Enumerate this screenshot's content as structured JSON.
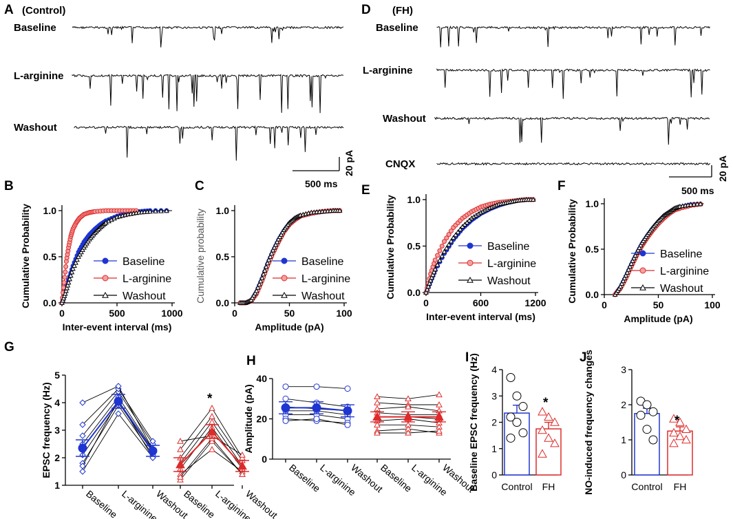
{
  "colors": {
    "blue": "#1f35d1",
    "red": "#dd2a2a",
    "black": "#000000"
  },
  "chart_data": [
    {
      "panel": "A",
      "type": "line",
      "title": "(Control)",
      "series": [
        {
          "name": "Baseline"
        },
        {
          "name": "L-arginine"
        },
        {
          "name": "Washout"
        }
      ],
      "scale_bar": {
        "time": "500 ms",
        "current": "20 pA"
      }
    },
    {
      "panel": "D",
      "type": "line",
      "title": "(FH)",
      "series": [
        {
          "name": "Baseline"
        },
        {
          "name": "L-arginine"
        },
        {
          "name": "Washout"
        },
        {
          "name": "CNQX"
        }
      ],
      "scale_bar": {
        "time": "500 ms",
        "current": "20 pA"
      }
    },
    {
      "panel": "B",
      "type": "scatter",
      "xlabel": "Inter-event interval (ms)",
      "ylabel": "Cumulative Probability",
      "xlim": [
        0,
        1000
      ],
      "ylim": [
        0,
        1
      ],
      "xticks": [
        "0",
        "500",
        "1000"
      ],
      "yticks": [
        "0.0",
        "0.5",
        "1.0"
      ],
      "legend": [
        "Baseline",
        "L-arginine",
        "Washout"
      ],
      "series": [
        {
          "name": "Baseline",
          "x": [
            0,
            30,
            60,
            100,
            150,
            200,
            250,
            300,
            350,
            400,
            500,
            600,
            700,
            800,
            1000
          ],
          "y": [
            0,
            0.12,
            0.25,
            0.4,
            0.55,
            0.66,
            0.74,
            0.8,
            0.85,
            0.89,
            0.94,
            0.97,
            0.99,
            1.0,
            1.0
          ]
        },
        {
          "name": "L-arginine",
          "x": [
            0,
            20,
            40,
            60,
            80,
            100,
            130,
            160,
            200,
            250,
            300,
            400,
            500,
            600,
            700
          ],
          "y": [
            0,
            0.22,
            0.45,
            0.6,
            0.72,
            0.8,
            0.87,
            0.92,
            0.96,
            0.98,
            0.99,
            1.0,
            1.0,
            1.0,
            1.0
          ]
        },
        {
          "name": "Washout",
          "x": [
            0,
            30,
            60,
            100,
            150,
            200,
            250,
            300,
            350,
            400,
            500,
            600,
            700,
            800,
            1000
          ],
          "y": [
            0,
            0.1,
            0.22,
            0.37,
            0.5,
            0.6,
            0.69,
            0.76,
            0.82,
            0.87,
            0.93,
            0.96,
            0.98,
            0.99,
            1.0
          ]
        }
      ]
    },
    {
      "panel": "C",
      "type": "scatter",
      "xlabel": "Amplitude (pA)",
      "ylabel": "Cumulative probability",
      "xlim": [
        0,
        100
      ],
      "ylim": [
        0,
        1
      ],
      "xticks": [
        "0",
        "50",
        "100"
      ],
      "yticks": [
        "0.0",
        "0.5",
        "1.0"
      ],
      "legend": [
        "Baseline",
        "L-arginine",
        "Washout"
      ],
      "series": [
        {
          "name": "Baseline",
          "x": [
            5,
            10,
            15,
            20,
            25,
            30,
            35,
            40,
            45,
            50,
            55,
            60,
            70,
            80,
            90,
            98
          ],
          "y": [
            0,
            0,
            0.02,
            0.12,
            0.26,
            0.42,
            0.56,
            0.68,
            0.78,
            0.86,
            0.91,
            0.94,
            0.97,
            0.99,
            1.0,
            1.0
          ]
        },
        {
          "name": "L-arginine",
          "x": [
            5,
            10,
            15,
            20,
            25,
            30,
            35,
            40,
            45,
            50,
            55,
            60,
            70,
            80,
            90,
            98
          ],
          "y": [
            0,
            0,
            0.02,
            0.1,
            0.24,
            0.4,
            0.54,
            0.66,
            0.77,
            0.85,
            0.9,
            0.94,
            0.97,
            0.99,
            1.0,
            1.0
          ]
        },
        {
          "name": "Washout",
          "x": [
            5,
            10,
            15,
            20,
            25,
            30,
            35,
            40,
            45,
            50,
            55,
            60,
            70,
            80,
            90,
            98
          ],
          "y": [
            0,
            0,
            0.03,
            0.13,
            0.27,
            0.43,
            0.57,
            0.69,
            0.79,
            0.87,
            0.92,
            0.95,
            0.98,
            0.99,
            1.0,
            1.0
          ]
        }
      ]
    },
    {
      "panel": "E",
      "type": "scatter",
      "xlabel": "Inter-event interval (ms)",
      "ylabel": "Cumulative Probability",
      "xlim": [
        0,
        1200
      ],
      "ylim": [
        0,
        1
      ],
      "xticks": [
        "0",
        "600",
        "1200"
      ],
      "yticks": [
        "0.0",
        "0.5",
        "1.0"
      ],
      "legend": [
        "Baseline",
        "L-arginine",
        "Washout"
      ],
      "series": [
        {
          "name": "Baseline",
          "x": [
            0,
            50,
            100,
            200,
            300,
            400,
            500,
            600,
            700,
            800,
            900,
            1000,
            1100,
            1200
          ],
          "y": [
            0,
            0.12,
            0.24,
            0.42,
            0.57,
            0.69,
            0.78,
            0.85,
            0.9,
            0.94,
            0.97,
            0.99,
            1.0,
            1.0
          ]
        },
        {
          "name": "L-arginine",
          "x": [
            0,
            50,
            100,
            200,
            300,
            400,
            500,
            600,
            700,
            800,
            900,
            1000,
            1100,
            1200
          ],
          "y": [
            0,
            0.2,
            0.35,
            0.55,
            0.7,
            0.8,
            0.87,
            0.92,
            0.95,
            0.97,
            0.98,
            0.99,
            1.0,
            1.0
          ]
        },
        {
          "name": "Washout",
          "x": [
            0,
            50,
            100,
            200,
            300,
            400,
            500,
            600,
            700,
            800,
            900,
            1000,
            1100,
            1200
          ],
          "y": [
            0,
            0.13,
            0.25,
            0.44,
            0.59,
            0.71,
            0.8,
            0.86,
            0.91,
            0.95,
            0.97,
            0.99,
            1.0,
            1.0
          ]
        }
      ]
    },
    {
      "panel": "F",
      "type": "scatter",
      "xlabel": "Amplitude (pA)",
      "ylabel": "Cumulative Probability",
      "xlim": [
        0,
        100
      ],
      "ylim": [
        0,
        1
      ],
      "xticks": [
        "0",
        "50",
        "100"
      ],
      "yticks": [
        "0.0",
        "0.5",
        "1.0"
      ],
      "legend": [
        "Baseline",
        "L-arginine",
        "Washout"
      ],
      "series": [
        {
          "name": "Baseline",
          "x": [
            10,
            15,
            20,
            25,
            30,
            35,
            40,
            45,
            50,
            55,
            60,
            65,
            70,
            80,
            92
          ],
          "y": [
            0,
            0.08,
            0.2,
            0.33,
            0.45,
            0.56,
            0.65,
            0.73,
            0.8,
            0.86,
            0.9,
            0.94,
            0.96,
            0.99,
            1.0
          ]
        },
        {
          "name": "L-arginine",
          "x": [
            10,
            15,
            20,
            25,
            30,
            35,
            40,
            45,
            50,
            55,
            60,
            65,
            70,
            80,
            92
          ],
          "y": [
            0,
            0.07,
            0.18,
            0.31,
            0.43,
            0.54,
            0.63,
            0.71,
            0.78,
            0.84,
            0.89,
            0.93,
            0.95,
            0.98,
            1.0
          ]
        },
        {
          "name": "Washout",
          "x": [
            10,
            15,
            20,
            25,
            30,
            35,
            40,
            45,
            50,
            55,
            60,
            65,
            70,
            80,
            92
          ],
          "y": [
            0,
            0.09,
            0.21,
            0.34,
            0.46,
            0.57,
            0.66,
            0.74,
            0.81,
            0.87,
            0.91,
            0.95,
            0.97,
            0.99,
            1.0
          ]
        }
      ]
    },
    {
      "panel": "G",
      "type": "line",
      "ylabel": "EPSC frequency (Hz)",
      "ylim": [
        1,
        5
      ],
      "yticks": [
        "1",
        "2",
        "3",
        "4",
        "5"
      ],
      "categories": [
        "Baseline",
        "L-arginine",
        "Washout",
        "Baseline",
        "L-arginine",
        "Washout"
      ],
      "annotation": "*",
      "groups": [
        {
          "name": "Control",
          "color": "#1f35d1",
          "mean": [
            2.35,
            4.05,
            2.25
          ],
          "sem": [
            0.3,
            0.25,
            0.2
          ],
          "individual": [
            [
              1.5,
              3.6,
              2.0
            ],
            [
              1.8,
              3.9,
              2.1
            ],
            [
              2.1,
              4.0,
              2.2
            ],
            [
              2.5,
              4.2,
              2.3
            ],
            [
              2.8,
              4.4,
              2.5
            ],
            [
              3.2,
              4.5,
              2.6
            ],
            [
              4.0,
              4.6,
              2.3
            ],
            [
              1.7,
              4.1,
              2.0
            ]
          ]
        },
        {
          "name": "FH",
          "color": "#dd2a2a",
          "mean": [
            1.75,
            2.95,
            1.7
          ],
          "sem": [
            0.25,
            0.25,
            0.2
          ],
          "individual": [
            [
              1.2,
              2.6,
              1.4
            ],
            [
              1.4,
              2.3,
              1.5
            ],
            [
              1.6,
              3.1,
              1.6
            ],
            [
              1.8,
              3.3,
              1.7
            ],
            [
              2.0,
              3.5,
              1.9
            ],
            [
              2.3,
              3.8,
              2.0
            ],
            [
              2.6,
              2.8,
              2.1
            ],
            [
              1.3,
              2.7,
              1.4
            ]
          ]
        }
      ]
    },
    {
      "panel": "H",
      "type": "line",
      "ylabel": "Amplitude (pA)",
      "ylim": [
        0,
        40
      ],
      "yticks": [
        "0",
        "20",
        "40"
      ],
      "categories": [
        "Baseline",
        "L-arginine",
        "Washout",
        "Baseline",
        "L-arginine",
        "Washout"
      ],
      "groups": [
        {
          "name": "Control",
          "color": "#1f35d1",
          "mean": [
            25.5,
            25.5,
            24.0
          ],
          "sem": [
            3,
            3,
            3
          ],
          "individual": [
            [
              36,
              36,
              35
            ],
            [
              30,
              28,
              26
            ],
            [
              26,
              25,
              24
            ],
            [
              24,
              24,
              22
            ],
            [
              22,
              22,
              20
            ],
            [
              20,
              19,
              18
            ],
            [
              19,
              20,
              17
            ]
          ]
        },
        {
          "name": "FH",
          "color": "#dd2a2a",
          "mean": [
            21.0,
            21.0,
            21.0
          ],
          "sem": [
            2.5,
            2.5,
            2.5
          ],
          "individual": [
            [
              31,
              30,
              32
            ],
            [
              28,
              27,
              27
            ],
            [
              25,
              26,
              24
            ],
            [
              23,
              22,
              22
            ],
            [
              21,
              21,
              20
            ],
            [
              19,
              20,
              18
            ],
            [
              17,
              17,
              16
            ],
            [
              14,
              15,
              13
            ],
            [
              13,
              13,
              14
            ]
          ]
        }
      ]
    },
    {
      "panel": "I",
      "type": "bar",
      "ylabel": "Baseline EPSC frequency (Hz)",
      "ylim": [
        0,
        4
      ],
      "yticks": [
        "0",
        "1",
        "2",
        "3",
        "4"
      ],
      "categories": [
        "Control",
        "FH"
      ],
      "values": [
        2.35,
        1.75
      ],
      "sem": [
        0.3,
        0.25
      ],
      "points": [
        [
          3.7,
          3.0,
          2.6,
          2.2,
          2.0,
          1.6,
          1.4
        ],
        [
          2.4,
          2.2,
          2.0,
          1.7,
          1.4,
          1.2,
          0.8
        ]
      ],
      "annotation": "*"
    },
    {
      "panel": "J",
      "type": "bar",
      "ylabel": "NO-induced frequency changes",
      "ylim": [
        0,
        3
      ],
      "yticks": [
        "0",
        "1",
        "2",
        "3"
      ],
      "categories": [
        "Control",
        "FH"
      ],
      "values": [
        1.75,
        1.25
      ],
      "sem": [
        0.15,
        0.12
      ],
      "points": [
        [
          2.1,
          2.0,
          1.8,
          1.7,
          1.3,
          1.0
        ],
        [
          1.6,
          1.5,
          1.3,
          1.2,
          1.1,
          1.0,
          0.9
        ]
      ],
      "annotation": "*"
    }
  ]
}
